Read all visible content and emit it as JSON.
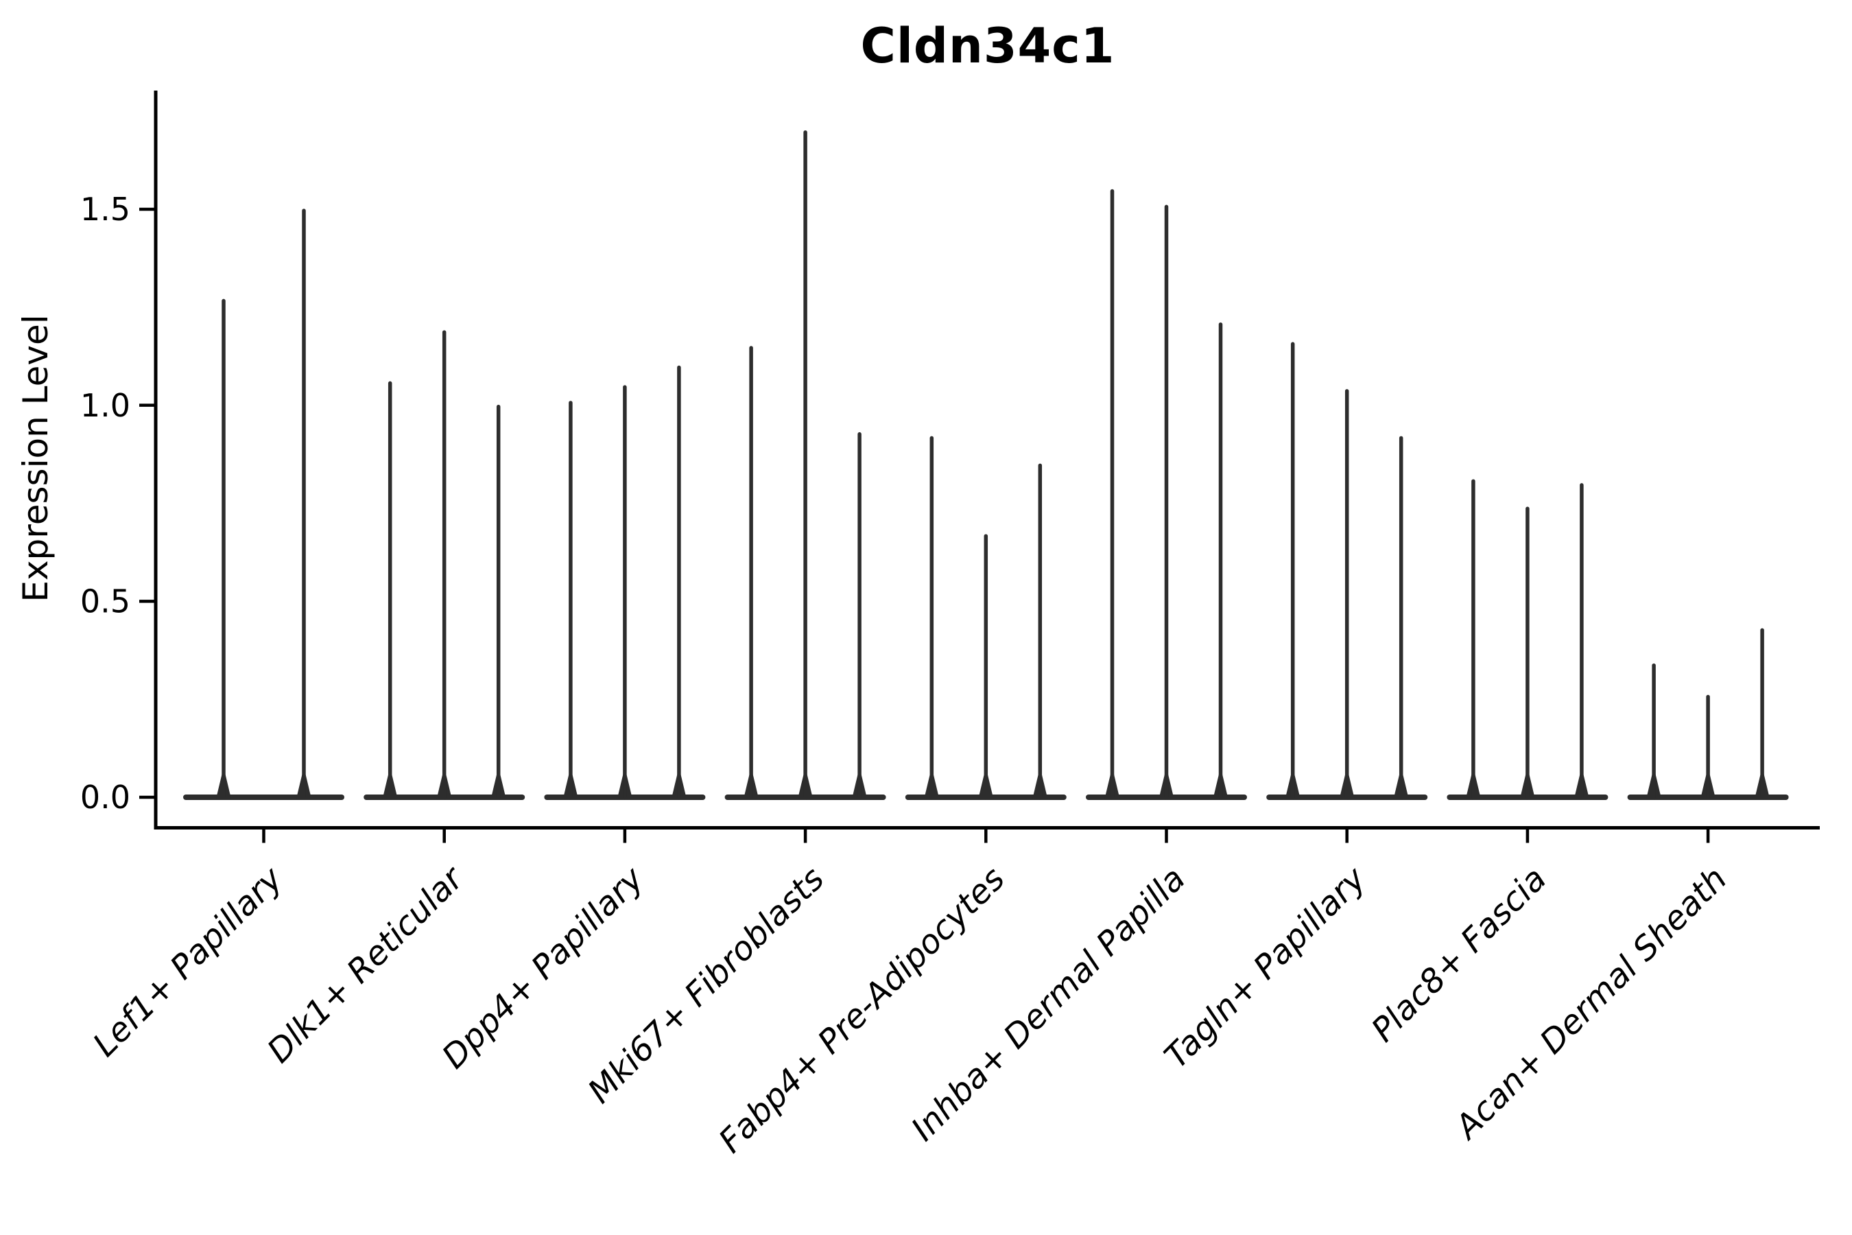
{
  "title": "Cldn34c1",
  "ylabel": "Expression Level",
  "colors": {
    "ink": "#000000",
    "violin": "#2d2d2d",
    "background": "#ffffff"
  },
  "chart_data": {
    "type": "violin",
    "title": "Cldn34c1",
    "xlabel": "",
    "ylabel": "Expression Level",
    "ylim": [
      -0.08,
      1.78
    ],
    "yticks": [
      0.0,
      0.5,
      1.0,
      1.5
    ],
    "ytick_labels": [
      "0.0",
      "0.5",
      "1.0",
      "1.5"
    ],
    "grid": false,
    "legend": "none",
    "xtick_rotation_deg": 45,
    "description": "Single-cell expression violin plot; each category shows narrow spike-shaped violins concentrated at 0 with thin tails; value recorded is each violin's maximum expression (spike top).",
    "baseline_value": 0.0,
    "categories": [
      "Lef1+ Papillary",
      "Dlk1+ Reticular",
      "Dpp4+ Papillary",
      "Mki67+ Fibroblasts",
      "Fabp4+ Pre-Adipocytes",
      "Inhba+ Dermal Papilla",
      "Tagln+ Papillary",
      "Plac8+ Fascia",
      "Acan+ Dermal Sheath"
    ],
    "groups": [
      {
        "category": "Lef1+ Papillary",
        "violin_max_values": [
          1.27,
          1.5
        ]
      },
      {
        "category": "Dlk1+ Reticular",
        "violin_max_values": [
          1.06,
          1.19,
          1.0
        ]
      },
      {
        "category": "Dpp4+ Papillary",
        "violin_max_values": [
          1.01,
          1.05,
          1.1
        ]
      },
      {
        "category": "Mki67+ Fibroblasts",
        "violin_max_values": [
          1.15,
          1.7,
          0.93
        ]
      },
      {
        "category": "Fabp4+ Pre-Adipocytes",
        "violin_max_values": [
          0.92,
          0.67,
          0.85
        ]
      },
      {
        "category": "Inhba+ Dermal Papilla",
        "violin_max_values": [
          1.55,
          1.51,
          1.21
        ]
      },
      {
        "category": "Tagln+ Papillary",
        "violin_max_values": [
          1.16,
          1.04,
          0.92
        ]
      },
      {
        "category": "Plac8+ Fascia",
        "violin_max_values": [
          0.81,
          0.74,
          0.8
        ]
      },
      {
        "category": "Acan+ Dermal Sheath",
        "violin_max_values": [
          0.34,
          0.26,
          0.43
        ]
      }
    ]
  }
}
